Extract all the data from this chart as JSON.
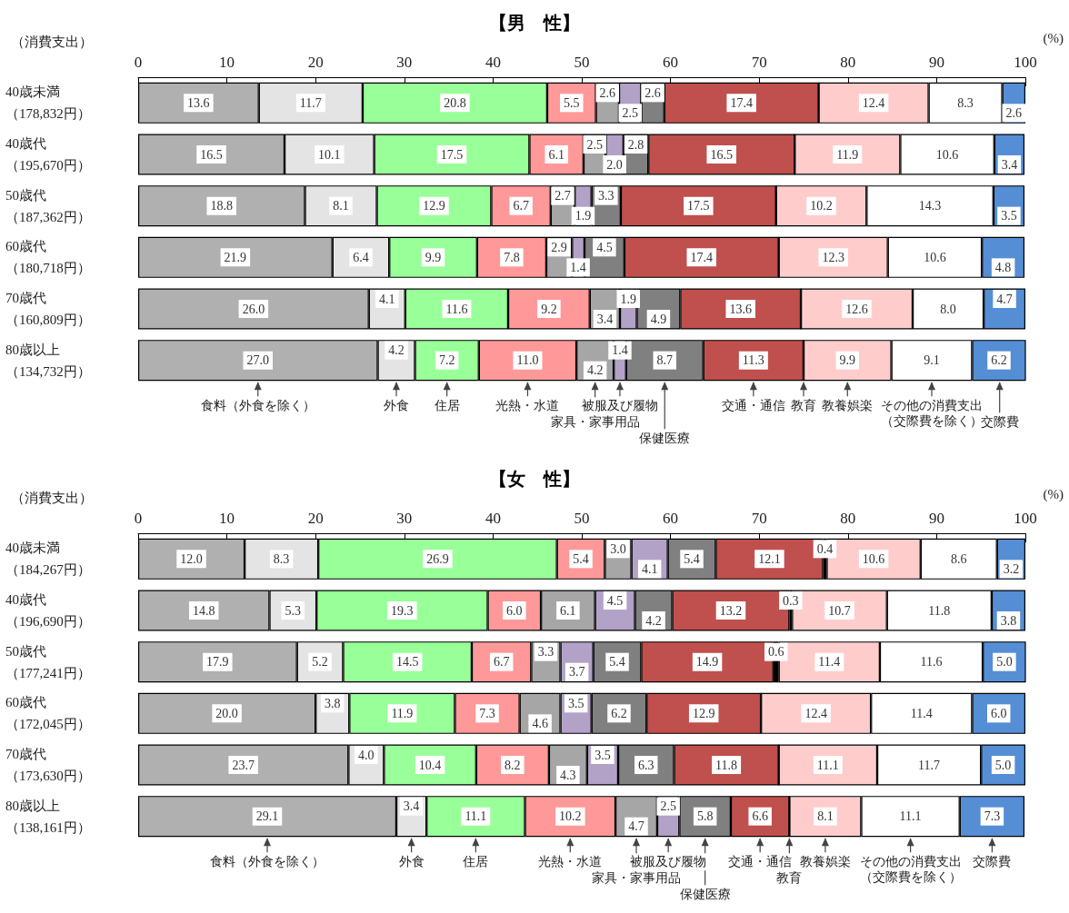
{
  "chart_data": [
    {
      "type": "bar",
      "title": "【男　性】",
      "xlabel": "(%)",
      "ylabel": "（消費支出）",
      "orientation": "horizontal",
      "stacked": true,
      "xlim": [
        0,
        100
      ],
      "xticks": [
        0,
        10,
        20,
        30,
        40,
        50,
        60,
        70,
        80,
        90,
        100
      ],
      "legend": "bottom",
      "categories": [
        "40歳未満（178,832円）",
        "40歳代（195,670円）",
        "50歳代（187,362円）",
        "60歳代（180,718円）",
        "70歳代（160,809円）",
        "80歳以上（134,732円）"
      ],
      "series": [
        {
          "name": "食料（外食を除く）",
          "color": "#b0b0b0",
          "values": [
            13.6,
            16.5,
            18.8,
            21.9,
            26.0,
            27.0
          ],
          "value_labels": [
            "13.6",
            "16.5",
            "18.8",
            "21.9",
            "26.0",
            "27.0"
          ]
        },
        {
          "name": "外食",
          "color": "#e4e4e4",
          "values": [
            11.7,
            10.1,
            8.1,
            6.4,
            4.1,
            4.2
          ],
          "value_labels": [
            "11.7",
            "10.1",
            "8.1",
            "6.4",
            "4.1",
            "4.2"
          ]
        },
        {
          "name": "住居",
          "color": "#99ff99",
          "values": [
            20.8,
            17.5,
            12.9,
            9.9,
            11.6,
            7.2
          ],
          "value_labels": [
            "20.8",
            "17.5",
            "12.9",
            "9.9",
            "11.6",
            "7.2"
          ]
        },
        {
          "name": "光熱・水道",
          "color": "#ff9999",
          "values": [
            5.5,
            6.1,
            6.7,
            7.8,
            9.2,
            11.0
          ],
          "value_labels": [
            "5.5",
            "6.1",
            "6.7",
            "7.8",
            "9.2",
            "11.0"
          ]
        },
        {
          "name": "家具・家事用品",
          "color": "#a6a6a6",
          "values": [
            2.6,
            2.5,
            2.7,
            2.9,
            3.4,
            4.2
          ],
          "value_labels": [
            "2.6",
            "2.5",
            "2.7",
            "2.9",
            "3.4",
            "4.2"
          ]
        },
        {
          "name": "被服及び履物",
          "color": "#b3a2c7",
          "values": [
            2.5,
            2.0,
            1.9,
            1.4,
            1.9,
            1.4
          ],
          "value_labels": [
            "2.5",
            "2.0",
            "1.9",
            "1.4",
            "1.9",
            "1.4"
          ]
        },
        {
          "name": "保健医療",
          "color": "#808080",
          "values": [
            2.6,
            2.8,
            3.3,
            4.5,
            4.9,
            8.7
          ],
          "value_labels": [
            "2.6",
            "2.8",
            "3.3",
            "4.5",
            "4.9",
            "8.7"
          ]
        },
        {
          "name": "交通・通信",
          "color": "#c0504d",
          "values": [
            17.4,
            16.5,
            17.5,
            17.4,
            13.6,
            11.3
          ],
          "value_labels": [
            "17.4",
            "16.5",
            "17.5",
            "17.4",
            "13.6",
            "11.3"
          ]
        },
        {
          "name": "教育",
          "color": "#000000",
          "values": [
            0,
            0,
            0,
            0,
            0,
            0
          ],
          "value_labels": [
            null,
            null,
            null,
            null,
            null,
            null
          ]
        },
        {
          "name": "教養娯楽",
          "color": "#ffcccc",
          "values": [
            12.4,
            11.9,
            10.2,
            12.3,
            12.6,
            9.9
          ],
          "value_labels": [
            "12.4",
            "11.9",
            "10.2",
            "12.3",
            "12.6",
            "9.9"
          ]
        },
        {
          "name": "その他の消費支出（交際費を除く）",
          "color": "#ffffff",
          "values": [
            8.3,
            10.6,
            14.3,
            10.6,
            8.0,
            9.1
          ],
          "value_labels": [
            "8.3",
            "10.6",
            "14.3",
            "10.6",
            "8.0",
            "9.1"
          ]
        },
        {
          "name": "交際費",
          "color": "#558ed5",
          "values": [
            2.6,
            3.4,
            3.5,
            4.8,
            4.7,
            6.2
          ],
          "value_labels": [
            "2.6",
            "3.4",
            "3.5",
            "4.8",
            "4.7",
            "6.2"
          ]
        }
      ]
    },
    {
      "type": "bar",
      "title": "【女　性】",
      "xlabel": "(%)",
      "ylabel": "（消費支出）",
      "orientation": "horizontal",
      "stacked": true,
      "xlim": [
        0,
        100
      ],
      "xticks": [
        0,
        10,
        20,
        30,
        40,
        50,
        60,
        70,
        80,
        90,
        100
      ],
      "legend": "bottom",
      "categories": [
        "40歳未満（184,267円）",
        "40歳代（196,690円）",
        "50歳代（177,241円）",
        "60歳代（172,045円）",
        "70歳代（173,630円）",
        "80歳以上（138,161円）"
      ],
      "series": [
        {
          "name": "食料（外食を除く）",
          "color": "#b0b0b0",
          "values": [
            12.0,
            14.8,
            17.9,
            20.0,
            23.7,
            29.1
          ],
          "value_labels": [
            "12.0",
            "14.8",
            "17.9",
            "20.0",
            "23.7",
            "29.1"
          ]
        },
        {
          "name": "外食",
          "color": "#e4e4e4",
          "values": [
            8.3,
            5.3,
            5.2,
            3.8,
            4.0,
            3.4
          ],
          "value_labels": [
            "8.3",
            "5.3",
            "5.2",
            "3.8",
            "4.0",
            "3.4"
          ]
        },
        {
          "name": "住居",
          "color": "#99ff99",
          "values": [
            26.9,
            19.3,
            14.5,
            11.9,
            10.4,
            11.1
          ],
          "value_labels": [
            "26.9",
            "19.3",
            "14.5",
            "11.9",
            "10.4",
            "11.1"
          ]
        },
        {
          "name": "光熱・水道",
          "color": "#ff9999",
          "values": [
            5.4,
            6.0,
            6.7,
            7.3,
            8.2,
            10.2
          ],
          "value_labels": [
            "5.4",
            "6.0",
            "6.7",
            "7.3",
            "8.2",
            "10.2"
          ]
        },
        {
          "name": "家具・家事用品",
          "color": "#a6a6a6",
          "values": [
            3.0,
            6.1,
            3.3,
            4.6,
            4.3,
            4.7
          ],
          "value_labels": [
            "3.0",
            "6.1",
            "3.3",
            "4.6",
            "4.3",
            "4.7"
          ]
        },
        {
          "name": "被服及び履物",
          "color": "#b3a2c7",
          "values": [
            4.1,
            4.5,
            3.7,
            3.5,
            3.5,
            2.5
          ],
          "value_labels": [
            "4.1",
            "4.5",
            "3.7",
            "3.5",
            "3.5",
            "2.5"
          ]
        },
        {
          "name": "保健医療",
          "color": "#808080",
          "values": [
            5.4,
            4.2,
            5.4,
            6.2,
            6.3,
            5.8
          ],
          "value_labels": [
            "5.4",
            "4.2",
            "5.4",
            "6.2",
            "6.3",
            "5.8"
          ]
        },
        {
          "name": "交通・通信",
          "color": "#c0504d",
          "values": [
            12.1,
            13.2,
            14.9,
            12.9,
            11.8,
            6.6
          ],
          "value_labels": [
            "12.1",
            "13.2",
            "14.9",
            "12.9",
            "11.8",
            "6.6"
          ]
        },
        {
          "name": "教育",
          "color": "#000000",
          "values": [
            0.4,
            0.3,
            0.6,
            0,
            0,
            0
          ],
          "value_labels": [
            "0.4",
            "0.3",
            "0.6",
            null,
            null,
            null
          ]
        },
        {
          "name": "教養娯楽",
          "color": "#ffcccc",
          "values": [
            10.6,
            10.7,
            11.4,
            12.4,
            11.1,
            8.1
          ],
          "value_labels": [
            "10.6",
            "10.7",
            "11.4",
            "12.4",
            "11.1",
            "8.1"
          ]
        },
        {
          "name": "その他の消費支出（交際費を除く）",
          "color": "#ffffff",
          "values": [
            8.6,
            11.8,
            11.6,
            11.4,
            11.7,
            11.1
          ],
          "value_labels": [
            "8.6",
            "11.8",
            "11.6",
            "11.4",
            "11.7",
            "11.1"
          ]
        },
        {
          "name": "交際費",
          "color": "#558ed5",
          "values": [
            3.2,
            3.8,
            5.0,
            6.0,
            5.0,
            7.3
          ],
          "value_labels": [
            "3.2",
            "3.8",
            "5.0",
            "6.0",
            "5.0",
            "7.3"
          ]
        }
      ]
    }
  ]
}
